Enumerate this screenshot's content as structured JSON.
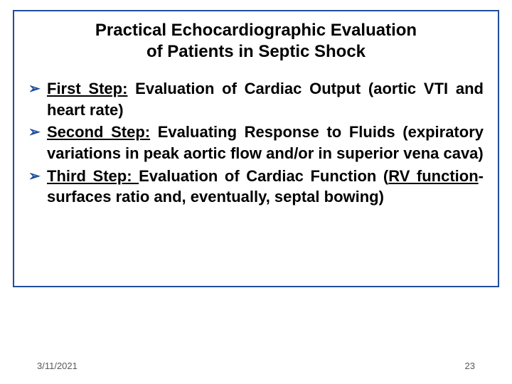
{
  "title_line1": "Practical Echocardiographic Evaluation",
  "title_line2": "of Patients in Septic Shock",
  "bullets": {
    "b1_label": "First Step:",
    "b1_text": " Evaluation  of Cardiac Output (aortic VTI and heart rate)",
    "b2_label": "Second Step:",
    "b2_text": " Evaluating Response to Fluids (expiratory variations in peak aortic flow and/or in superior vena cava)",
    "b3_label": "Third Step: ",
    "b3_text1": "Evaluation of Cardiac Function (",
    "b3_u2": "RV function",
    "b3_text2": "-surfaces ratio and, eventually, septal bowing)"
  },
  "footer": {
    "date": "3/11/2021",
    "page": "23"
  },
  "style": {
    "border_color": "#1f4e9c",
    "bullet_marker_color": "#1f4e9c",
    "text_color": "#000000",
    "footer_color": "#595959",
    "background": "#ffffff",
    "title_fontsize": 24,
    "body_fontsize": 22,
    "footer_fontsize": 13
  }
}
